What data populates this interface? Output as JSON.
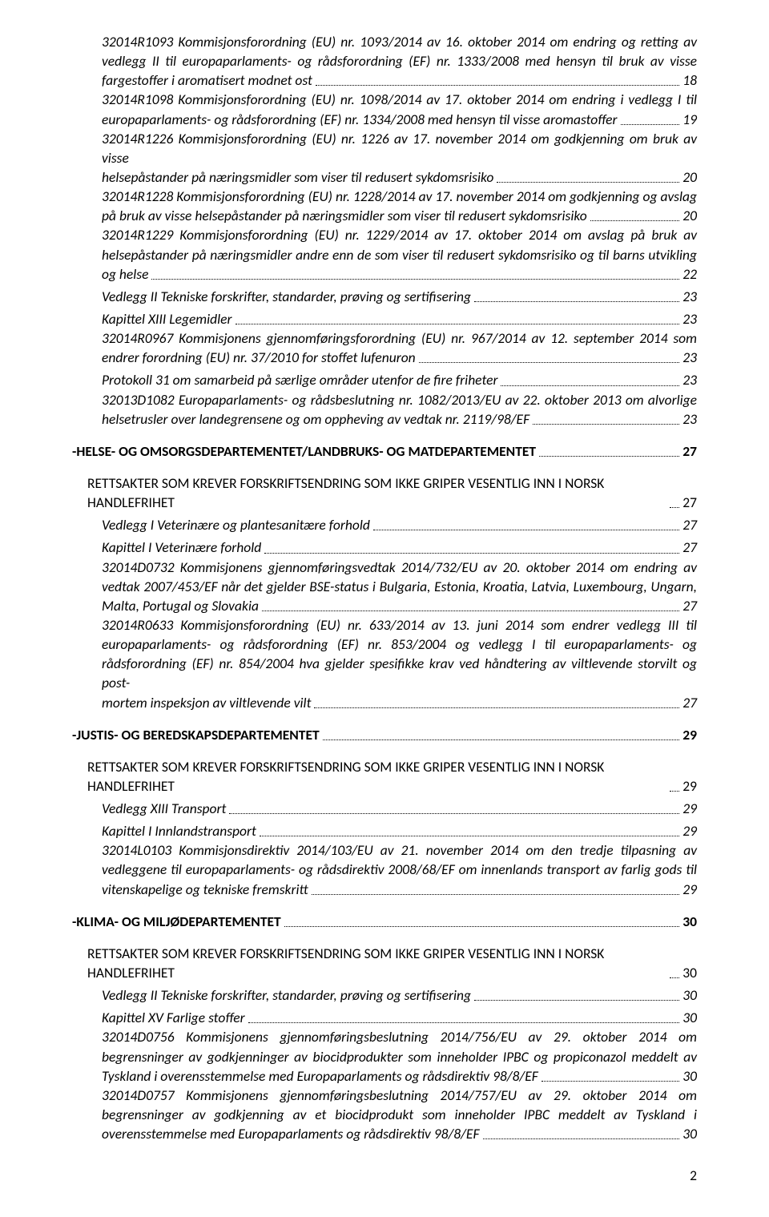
{
  "pageNumber": "2",
  "entries": [
    {
      "level": 2,
      "style": "italic",
      "gap": false,
      "runs": [
        "32014R1093 Kommisjonsforordning (EU) nr. 1093/2014 av 16. oktober 2014 om endring og retting av",
        "vedlegg II til europaparlaments- og rådsforordning (EF) nr. 1333/2008 med hensyn til bruk av visse"
      ],
      "last": "fargestoffer i aromatisert modnet ost",
      "page": "18"
    },
    {
      "level": 2,
      "style": "italic",
      "gap": false,
      "runs": [
        "32014R1098 Kommisjonsforordning (EU) nr. 1098/2014 av 17. oktober 2014 om endring i vedlegg I til"
      ],
      "last": "europaparlaments- og rådsforordning (EF) nr. 1334/2008 med hensyn til visse aromastoffer",
      "page": "19"
    },
    {
      "level": 2,
      "style": "italic",
      "gap": false,
      "runs": [
        "32014R1226 Kommisjonsforordning (EU) nr. 1226 av 17. november 2014 om godkjenning om bruk av visse"
      ],
      "last": "helsepåstander på næringsmidler som viser til redusert sykdomsrisiko",
      "page": "20"
    },
    {
      "level": 2,
      "style": "italic",
      "gap": false,
      "runs": [
        "32014R1228 Kommisjonsforordning (EU) nr. 1228/2014 av 17. november 2014 om godkjenning og avslag"
      ],
      "last": "på bruk av visse helsepåstander på næringsmidler som viser til redusert sykdomsrisiko",
      "page": "20"
    },
    {
      "level": 2,
      "style": "italic",
      "gap": false,
      "runs": [
        "32014R1229 Kommisjonsforordning (EU) nr. 1229/2014 av 17. oktober 2014 om avslag på bruk av",
        "helsepåstander på næringsmidler andre enn de som viser til redusert sykdomsrisiko og til barns utvikling"
      ],
      "last": "og helse",
      "page": "22"
    },
    {
      "level": 2,
      "style": "italic",
      "gap": false,
      "runs": [],
      "last": "Vedlegg II Tekniske forskrifter, standarder, prøving og sertifisering",
      "page": "23"
    },
    {
      "level": 2,
      "style": "italic",
      "gap": false,
      "runs": [],
      "last": "Kapittel XIII Legemidler",
      "page": "23"
    },
    {
      "level": 2,
      "style": "italic",
      "gap": false,
      "runs": [
        "32014R0967 Kommisjonens gjennomføringsforordning (EU) nr. 967/2014 av 12. september 2014 som"
      ],
      "last": "endrer forordning (EU) nr. 37/2010 for stoffet lufenuron",
      "page": "23"
    },
    {
      "level": 2,
      "style": "italic",
      "gap": false,
      "runs": [],
      "last": "Protokoll 31 om samarbeid på særlige områder utenfor de fire friheter",
      "page": "23"
    },
    {
      "level": 2,
      "style": "italic",
      "gap": false,
      "runs": [
        "32013D1082 Europaparlaments- og rådsbeslutning nr. 1082/2013/EU av 22. oktober 2013 om alvorlige"
      ],
      "last": "helsetrusler over landegrensene og om oppheving av vedtak nr. 2119/98/EF",
      "page": "23"
    },
    {
      "level": 0,
      "style": "bold",
      "gap": true,
      "runs": [],
      "last": "-HELSE- OG OMSORGSDEPARTEMENTET/LANDBRUKS- OG MATDEPARTEMENTET",
      "page": "27"
    },
    {
      "level": 1,
      "style": "normal",
      "gap": true,
      "runs": [],
      "last": "RETTSAKTER SOM KREVER FORSKRIFTSENDRING SOM IKKE GRIPER VESENTLIG INN I NORSK HANDLEFRIHET",
      "page": "27"
    },
    {
      "level": 2,
      "style": "italic",
      "gap": false,
      "runs": [],
      "last": "Vedlegg I Veterinære og plantesanitære forhold",
      "page": "27"
    },
    {
      "level": 2,
      "style": "italic",
      "gap": false,
      "runs": [],
      "last": "Kapittel I Veterinære forhold",
      "page": "27"
    },
    {
      "level": 2,
      "style": "italic",
      "gap": false,
      "runs": [
        "32014D0732 Kommisjonens gjennomføringsvedtak 2014/732/EU av 20. oktober 2014 om endring av",
        "vedtak 2007/453/EF når det gjelder BSE-status i Bulgaria, Estonia, Kroatia, Latvia, Luxembourg, Ungarn,"
      ],
      "last": "Malta, Portugal og Slovakia",
      "page": "27"
    },
    {
      "level": 2,
      "style": "italic",
      "gap": false,
      "runs": [
        "32014R0633 Kommisjonsforordning (EU) nr. 633/2014 av 13. juni 2014 som endrer vedlegg III til",
        "europaparlaments- og rådsforordning (EF) nr. 853/2004 og vedlegg I til europaparlaments- og",
        "rådsforordning (EF) nr. 854/2004 hva gjelder spesifikke krav ved håndtering av viltlevende storvilt og post-"
      ],
      "last": "mortem inspeksjon av viltlevende vilt",
      "page": "27"
    },
    {
      "level": 0,
      "style": "bold",
      "gap": true,
      "runs": [],
      "last": "-JUSTIS- OG BEREDSKAPSDEPARTEMENTET",
      "page": "29"
    },
    {
      "level": 1,
      "style": "normal",
      "gap": true,
      "runs": [],
      "last": "RETTSAKTER SOM KREVER FORSKRIFTSENDRING SOM IKKE GRIPER VESENTLIG INN I NORSK HANDLEFRIHET",
      "page": "29"
    },
    {
      "level": 2,
      "style": "italic",
      "gap": false,
      "runs": [],
      "last": "Vedlegg XIII Transport",
      "page": "29"
    },
    {
      "level": 2,
      "style": "italic",
      "gap": false,
      "runs": [],
      "last": "Kapittel I Innlandstransport",
      "page": "29"
    },
    {
      "level": 2,
      "style": "italic",
      "gap": false,
      "runs": [
        "32014L0103 Kommisjonsdirektiv 2014/103/EU av 21. november 2014 om den tredje tilpasning av",
        "vedleggene til europaparlaments- og rådsdirektiv 2008/68/EF om innenlands transport av farlig gods til"
      ],
      "last": "vitenskapelige og tekniske fremskritt",
      "page": "29"
    },
    {
      "level": 0,
      "style": "bold",
      "gap": true,
      "runs": [],
      "last": "-KLIMA- OG MILJØDEPARTEMENTET",
      "page": "30"
    },
    {
      "level": 1,
      "style": "normal",
      "gap": true,
      "runs": [],
      "last": "RETTSAKTER SOM KREVER FORSKRIFTSENDRING SOM IKKE GRIPER VESENTLIG INN I NORSK HANDLEFRIHET",
      "page": "30"
    },
    {
      "level": 2,
      "style": "italic",
      "gap": false,
      "runs": [],
      "last": "Vedlegg II Tekniske forskrifter, standarder, prøving og sertifisering",
      "page": "30"
    },
    {
      "level": 2,
      "style": "italic",
      "gap": false,
      "runs": [],
      "last": "Kapittel XV Farlige stoffer",
      "page": "30"
    },
    {
      "level": 2,
      "style": "italic",
      "gap": false,
      "runs": [
        "32014D0756 Kommisjonens gjennomføringsbeslutning 2014/756/EU av 29. oktober 2014 om",
        "begrensninger av godkjenninger av biocidprodukter som inneholder IPBC og propiconazol meddelt av"
      ],
      "last": "Tyskland i overensstemmelse med Europaparlaments og rådsdirektiv 98/8/EF",
      "page": "30"
    },
    {
      "level": 2,
      "style": "italic",
      "gap": false,
      "runs": [
        "32014D0757 Kommisjonens gjennomføringsbeslutning 2014/757/EU av 29. oktober 2014 om",
        "begrensninger av godkjenning av et biocidprodukt som inneholder IPBC meddelt av Tyskland i"
      ],
      "last": "overensstemmelse med Europaparlaments og rådsdirektiv 98/8/EF",
      "page": "30"
    }
  ]
}
